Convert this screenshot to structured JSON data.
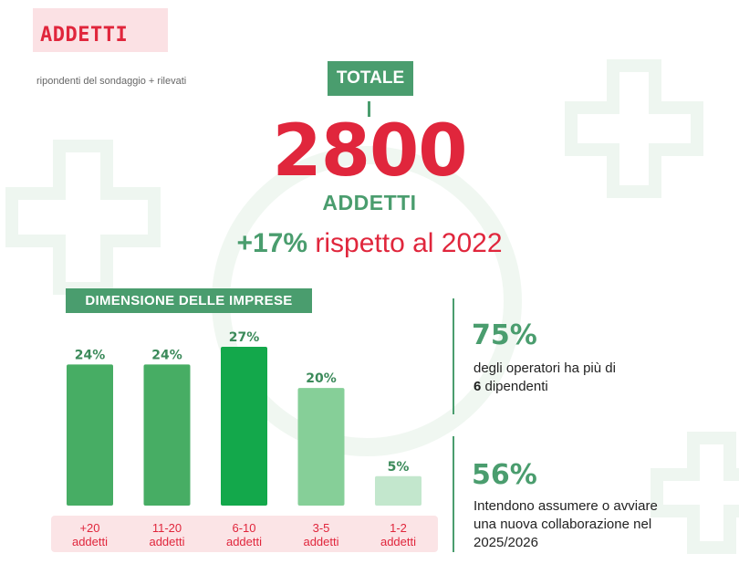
{
  "header": {
    "title": "ADDETTI",
    "subtitle": "ripondenti del sondaggio + rilevati"
  },
  "total": {
    "label": "TOTALE",
    "value": "2800",
    "unit": "ADDETTI",
    "growth_pct": "+17%",
    "growth_text": "rispetto al 2022"
  },
  "chart_data": {
    "type": "bar",
    "title": "DIMENSIONE DELLE IMPRESE",
    "categories": [
      "+20 addetti",
      "11-20 addetti",
      "6-10 addetti",
      "3-5 addetti",
      "1-2 addetti"
    ],
    "category_lines": [
      [
        "+20",
        "addetti"
      ],
      [
        "11-20",
        "addetti"
      ],
      [
        "6-10",
        "addetti"
      ],
      [
        "3-5",
        "addetti"
      ],
      [
        "1-2",
        "addetti"
      ]
    ],
    "values": [
      24,
      24,
      27,
      20,
      5
    ],
    "value_labels": [
      "24%",
      "24%",
      "27%",
      "20%",
      "5%"
    ],
    "colors": [
      "#47ad64",
      "#47ad64",
      "#13a84b",
      "#86cf98",
      "#c3e7cd"
    ],
    "label_color": "#e0263c",
    "value_label_color": "#3b8a5a",
    "ylim": [
      0,
      27
    ]
  },
  "stats": [
    {
      "pct": "75%",
      "text_before": "degli operatori ha più di",
      "text_bold": "6",
      "text_after": " dipendenti"
    },
    {
      "pct": "56%",
      "line1": "Intendono assumere o avviare",
      "line2": "una nuova collaborazione nel",
      "line3": "2025/2026"
    }
  ],
  "colors": {
    "brand_green": "#4a9d6e",
    "brand_red": "#e0263c",
    "pink_bg": "#fbe1e4"
  }
}
